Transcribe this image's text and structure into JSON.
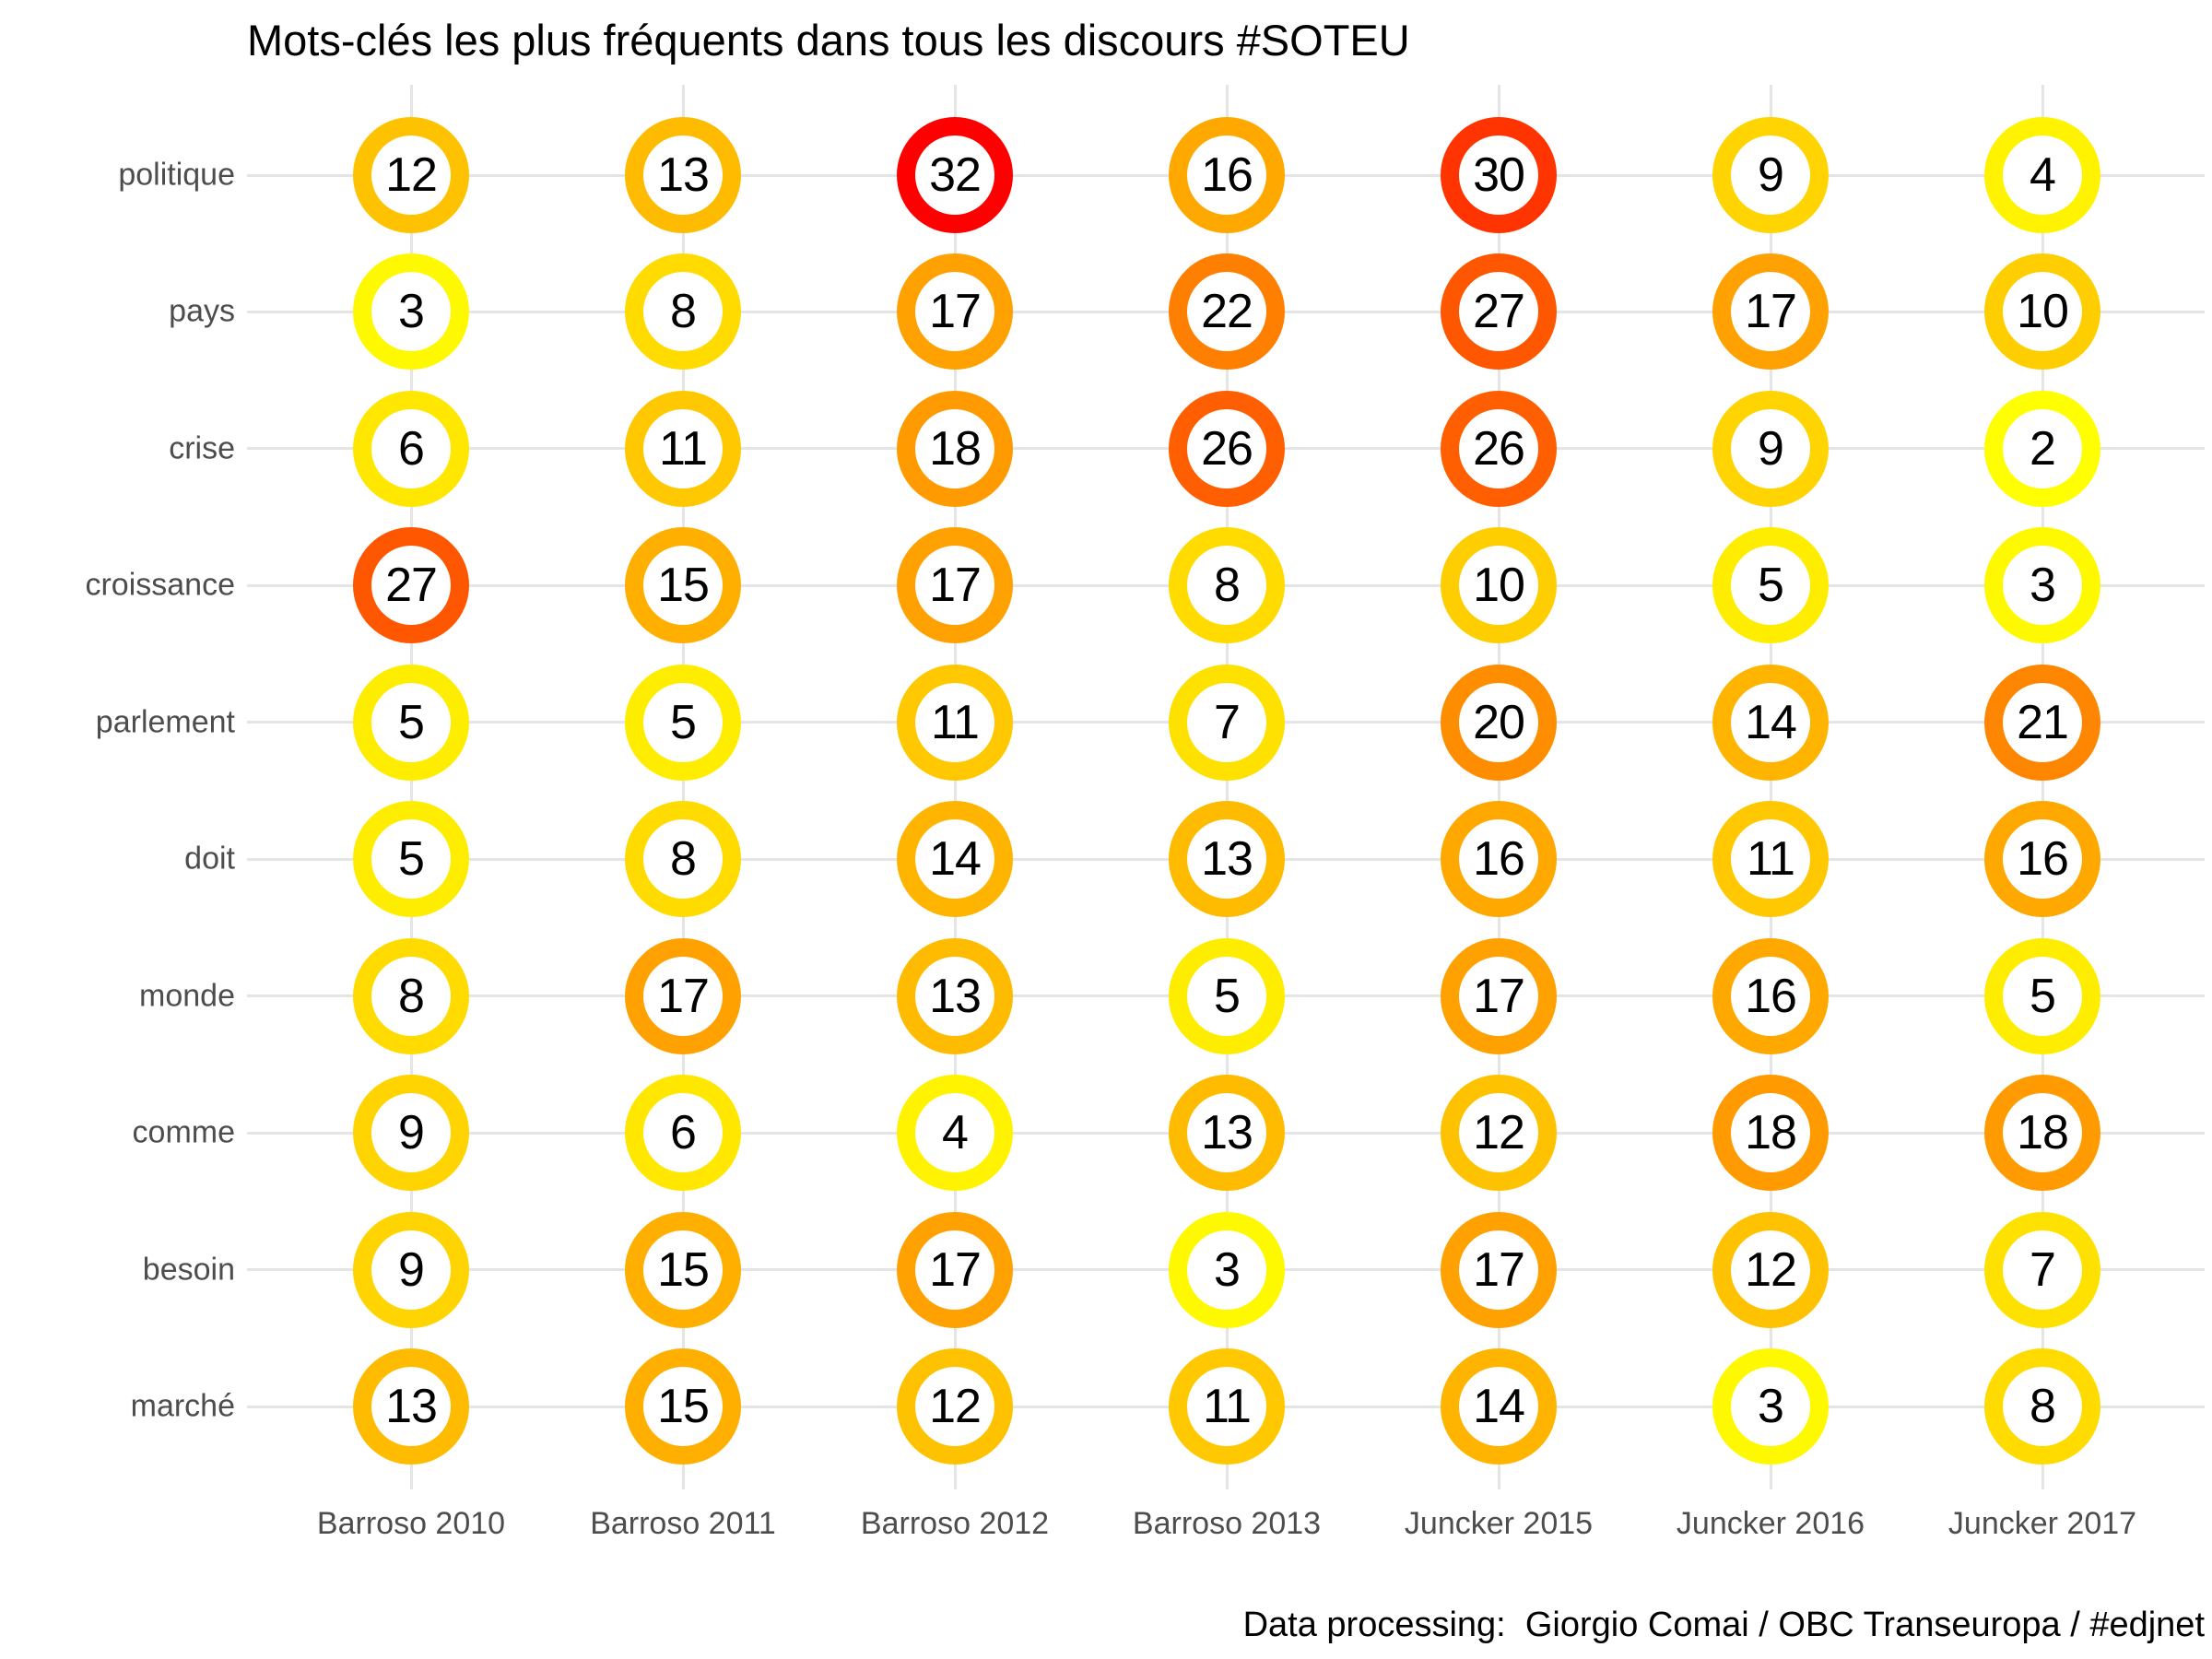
{
  "title": "Mots-clés les plus fréquents dans tous les discours #SOTEU",
  "attribution": "Data processing:  Giorgio Comai / OBC Transeuropa / #edjnet",
  "colors": {
    "scale_low": "#FFFF00",
    "scale_high": "#FF0000",
    "gridline": "#E5E5E5",
    "axis_text": "#4D4D4D",
    "title_text": "#000000",
    "value_text": "#000000",
    "ring_fill": "#FFFFFF",
    "background": "#FFFFFF"
  },
  "chart_data": {
    "type": "heatmap",
    "subtype": "ring-matrix",
    "title": "Mots-clés les plus fréquents dans tous les discours #SOTEU",
    "x_categories": [
      "Barroso 2010",
      "Barroso 2011",
      "Barroso 2012",
      "Barroso 2013",
      "Juncker 2015",
      "Juncker 2016",
      "Juncker 2017"
    ],
    "y_categories": [
      "politique",
      "pays",
      "crise",
      "croissance",
      "parlement",
      "doit",
      "monde",
      "comme",
      "besoin",
      "marché"
    ],
    "series": [
      {
        "name": "politique",
        "values": [
          12,
          13,
          32,
          16,
          30,
          9,
          4
        ]
      },
      {
        "name": "pays",
        "values": [
          3,
          8,
          17,
          22,
          27,
          17,
          10
        ]
      },
      {
        "name": "crise",
        "values": [
          6,
          11,
          18,
          26,
          26,
          9,
          2
        ]
      },
      {
        "name": "croissance",
        "values": [
          27,
          15,
          17,
          8,
          10,
          5,
          3
        ]
      },
      {
        "name": "parlement",
        "values": [
          5,
          5,
          11,
          7,
          20,
          14,
          21
        ]
      },
      {
        "name": "doit",
        "values": [
          5,
          8,
          14,
          13,
          16,
          11,
          16
        ]
      },
      {
        "name": "monde",
        "values": [
          8,
          17,
          13,
          5,
          17,
          16,
          5
        ]
      },
      {
        "name": "comme",
        "values": [
          9,
          6,
          4,
          13,
          12,
          18,
          18
        ]
      },
      {
        "name": "besoin",
        "values": [
          9,
          15,
          17,
          3,
          17,
          12,
          7
        ]
      },
      {
        "name": "marché",
        "values": [
          13,
          15,
          12,
          11,
          14,
          3,
          8
        ]
      }
    ],
    "color_scale": {
      "low": "#FFFF00",
      "high": "#FF0000",
      "min": 2,
      "max": 32,
      "space": "lab"
    },
    "grid": true,
    "legend": "none"
  }
}
